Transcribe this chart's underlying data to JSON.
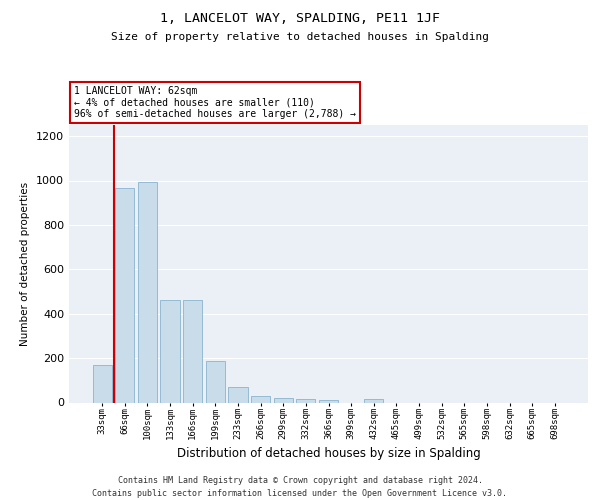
{
  "title": "1, LANCELOT WAY, SPALDING, PE11 1JF",
  "subtitle": "Size of property relative to detached houses in Spalding",
  "xlabel": "Distribution of detached houses by size in Spalding",
  "ylabel": "Number of detached properties",
  "categories": [
    "33sqm",
    "66sqm",
    "100sqm",
    "133sqm",
    "166sqm",
    "199sqm",
    "233sqm",
    "266sqm",
    "299sqm",
    "332sqm",
    "366sqm",
    "399sqm",
    "432sqm",
    "465sqm",
    "499sqm",
    "532sqm",
    "565sqm",
    "598sqm",
    "632sqm",
    "665sqm",
    "698sqm"
  ],
  "values": [
    170,
    965,
    995,
    460,
    460,
    185,
    70,
    28,
    22,
    15,
    10,
    0,
    14,
    0,
    0,
    0,
    0,
    0,
    0,
    0,
    0
  ],
  "bar_color": "#c9dcea",
  "bar_edge_color": "#8ab4d0",
  "vline_color": "#cc0000",
  "annotation_text": "1 LANCELOT WAY: 62sqm\n← 4% of detached houses are smaller (110)\n96% of semi-detached houses are larger (2,788) →",
  "annotation_box_color": "#ffffff",
  "annotation_box_edge": "#cc0000",
  "ylim": [
    0,
    1250
  ],
  "yticks": [
    0,
    200,
    400,
    600,
    800,
    1000,
    1200
  ],
  "background_color": "#eaf0f6",
  "footer_line1": "Contains HM Land Registry data © Crown copyright and database right 2024.",
  "footer_line2": "Contains public sector information licensed under the Open Government Licence v3.0."
}
